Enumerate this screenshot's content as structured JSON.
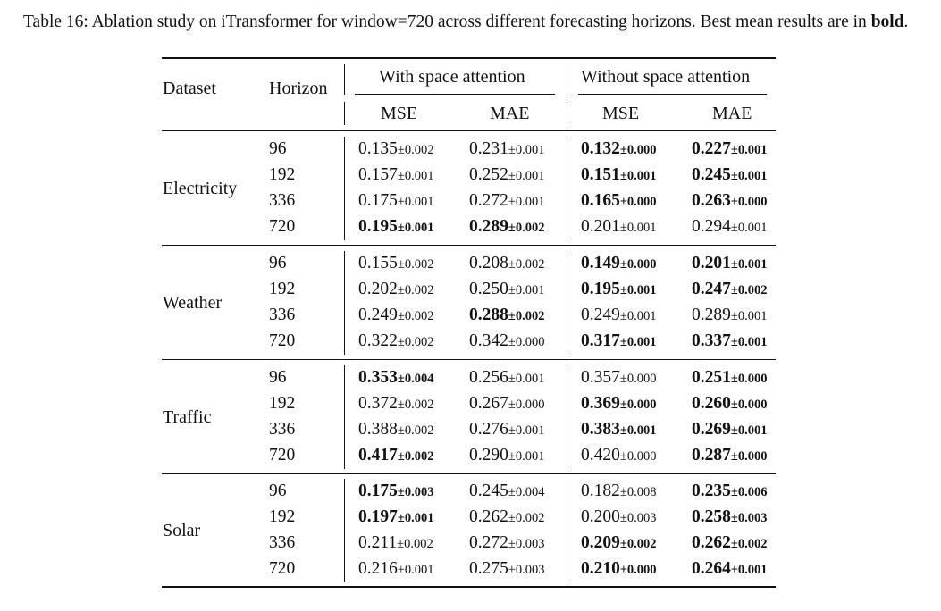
{
  "caption": {
    "prefix": "Table 16: Ablation study on iTransformer for window=720 across different forecasting horizons. Best mean results are in ",
    "bold_word": "bold",
    "suffix": "."
  },
  "headers": {
    "dataset": "Dataset",
    "horizon": "Horizon",
    "group_with": "With space attention",
    "group_without": "Without space attention",
    "mse": "MSE",
    "mae": "MAE"
  },
  "datasets": [
    {
      "name": "Electricity",
      "rows": [
        {
          "horizon": "96",
          "cells": [
            {
              "mean": "0.135",
              "std": "±0.002",
              "bold": false
            },
            {
              "mean": "0.231",
              "std": "±0.001",
              "bold": false
            },
            {
              "mean": "0.132",
              "std": "±0.000",
              "bold": true
            },
            {
              "mean": "0.227",
              "std": "±0.001",
              "bold": true
            }
          ]
        },
        {
          "horizon": "192",
          "cells": [
            {
              "mean": "0.157",
              "std": "±0.001",
              "bold": false
            },
            {
              "mean": "0.252",
              "std": "±0.001",
              "bold": false
            },
            {
              "mean": "0.151",
              "std": "±0.001",
              "bold": true
            },
            {
              "mean": "0.245",
              "std": "±0.001",
              "bold": true
            }
          ]
        },
        {
          "horizon": "336",
          "cells": [
            {
              "mean": "0.175",
              "std": "±0.001",
              "bold": false
            },
            {
              "mean": "0.272",
              "std": "±0.001",
              "bold": false
            },
            {
              "mean": "0.165",
              "std": "±0.000",
              "bold": true
            },
            {
              "mean": "0.263",
              "std": "±0.000",
              "bold": true
            }
          ]
        },
        {
          "horizon": "720",
          "cells": [
            {
              "mean": "0.195",
              "std": "±0.001",
              "bold": true
            },
            {
              "mean": "0.289",
              "std": "±0.002",
              "bold": true
            },
            {
              "mean": "0.201",
              "std": "±0.001",
              "bold": false
            },
            {
              "mean": "0.294",
              "std": "±0.001",
              "bold": false
            }
          ]
        }
      ]
    },
    {
      "name": "Weather",
      "rows": [
        {
          "horizon": "96",
          "cells": [
            {
              "mean": "0.155",
              "std": "±0.002",
              "bold": false
            },
            {
              "mean": "0.208",
              "std": "±0.002",
              "bold": false
            },
            {
              "mean": "0.149",
              "std": "±0.000",
              "bold": true
            },
            {
              "mean": "0.201",
              "std": "±0.001",
              "bold": true
            }
          ]
        },
        {
          "horizon": "192",
          "cells": [
            {
              "mean": "0.202",
              "std": "±0.002",
              "bold": false
            },
            {
              "mean": "0.250",
              "std": "±0.001",
              "bold": false
            },
            {
              "mean": "0.195",
              "std": "±0.001",
              "bold": true
            },
            {
              "mean": "0.247",
              "std": "±0.002",
              "bold": true
            }
          ]
        },
        {
          "horizon": "336",
          "cells": [
            {
              "mean": "0.249",
              "std": "±0.002",
              "bold": false
            },
            {
              "mean": "0.288",
              "std": "±0.002",
              "bold": true
            },
            {
              "mean": "0.249",
              "std": "±0.001",
              "bold": false
            },
            {
              "mean": "0.289",
              "std": "±0.001",
              "bold": false
            }
          ]
        },
        {
          "horizon": "720",
          "cells": [
            {
              "mean": "0.322",
              "std": "±0.002",
              "bold": false
            },
            {
              "mean": "0.342",
              "std": "±0.000",
              "bold": false
            },
            {
              "mean": "0.317",
              "std": "±0.001",
              "bold": true
            },
            {
              "mean": "0.337",
              "std": "±0.001",
              "bold": true
            }
          ]
        }
      ]
    },
    {
      "name": "Traffic",
      "rows": [
        {
          "horizon": "96",
          "cells": [
            {
              "mean": "0.353",
              "std": "±0.004",
              "bold": true
            },
            {
              "mean": "0.256",
              "std": "±0.001",
              "bold": false
            },
            {
              "mean": "0.357",
              "std": "±0.000",
              "bold": false
            },
            {
              "mean": "0.251",
              "std": "±0.000",
              "bold": true
            }
          ]
        },
        {
          "horizon": "192",
          "cells": [
            {
              "mean": "0.372",
              "std": "±0.002",
              "bold": false
            },
            {
              "mean": "0.267",
              "std": "±0.000",
              "bold": false
            },
            {
              "mean": "0.369",
              "std": "±0.000",
              "bold": true
            },
            {
              "mean": "0.260",
              "std": "±0.000",
              "bold": true
            }
          ]
        },
        {
          "horizon": "336",
          "cells": [
            {
              "mean": "0.388",
              "std": "±0.002",
              "bold": false
            },
            {
              "mean": "0.276",
              "std": "±0.001",
              "bold": false
            },
            {
              "mean": "0.383",
              "std": "±0.001",
              "bold": true
            },
            {
              "mean": "0.269",
              "std": "±0.001",
              "bold": true
            }
          ]
        },
        {
          "horizon": "720",
          "cells": [
            {
              "mean": "0.417",
              "std": "±0.002",
              "bold": true
            },
            {
              "mean": "0.290",
              "std": "±0.001",
              "bold": false
            },
            {
              "mean": "0.420",
              "std": "±0.000",
              "bold": false
            },
            {
              "mean": "0.287",
              "std": "±0.000",
              "bold": true
            }
          ]
        }
      ]
    },
    {
      "name": "Solar",
      "rows": [
        {
          "horizon": "96",
          "cells": [
            {
              "mean": "0.175",
              "std": "±0.003",
              "bold": true
            },
            {
              "mean": "0.245",
              "std": "±0.004",
              "bold": false
            },
            {
              "mean": "0.182",
              "std": "±0.008",
              "bold": false
            },
            {
              "mean": "0.235",
              "std": "±0.006",
              "bold": true
            }
          ]
        },
        {
          "horizon": "192",
          "cells": [
            {
              "mean": "0.197",
              "std": "±0.001",
              "bold": true
            },
            {
              "mean": "0.262",
              "std": "±0.002",
              "bold": false
            },
            {
              "mean": "0.200",
              "std": "±0.003",
              "bold": false
            },
            {
              "mean": "0.258",
              "std": "±0.003",
              "bold": true
            }
          ]
        },
        {
          "horizon": "336",
          "cells": [
            {
              "mean": "0.211",
              "std": "±0.002",
              "bold": false
            },
            {
              "mean": "0.272",
              "std": "±0.003",
              "bold": false
            },
            {
              "mean": "0.209",
              "std": "±0.002",
              "bold": true
            },
            {
              "mean": "0.262",
              "std": "±0.002",
              "bold": true
            }
          ]
        },
        {
          "horizon": "720",
          "cells": [
            {
              "mean": "0.216",
              "std": "±0.001",
              "bold": false
            },
            {
              "mean": "0.275",
              "std": "±0.003",
              "bold": false
            },
            {
              "mean": "0.210",
              "std": "±0.000",
              "bold": true
            },
            {
              "mean": "0.264",
              "std": "±0.001",
              "bold": true
            }
          ]
        }
      ]
    }
  ]
}
